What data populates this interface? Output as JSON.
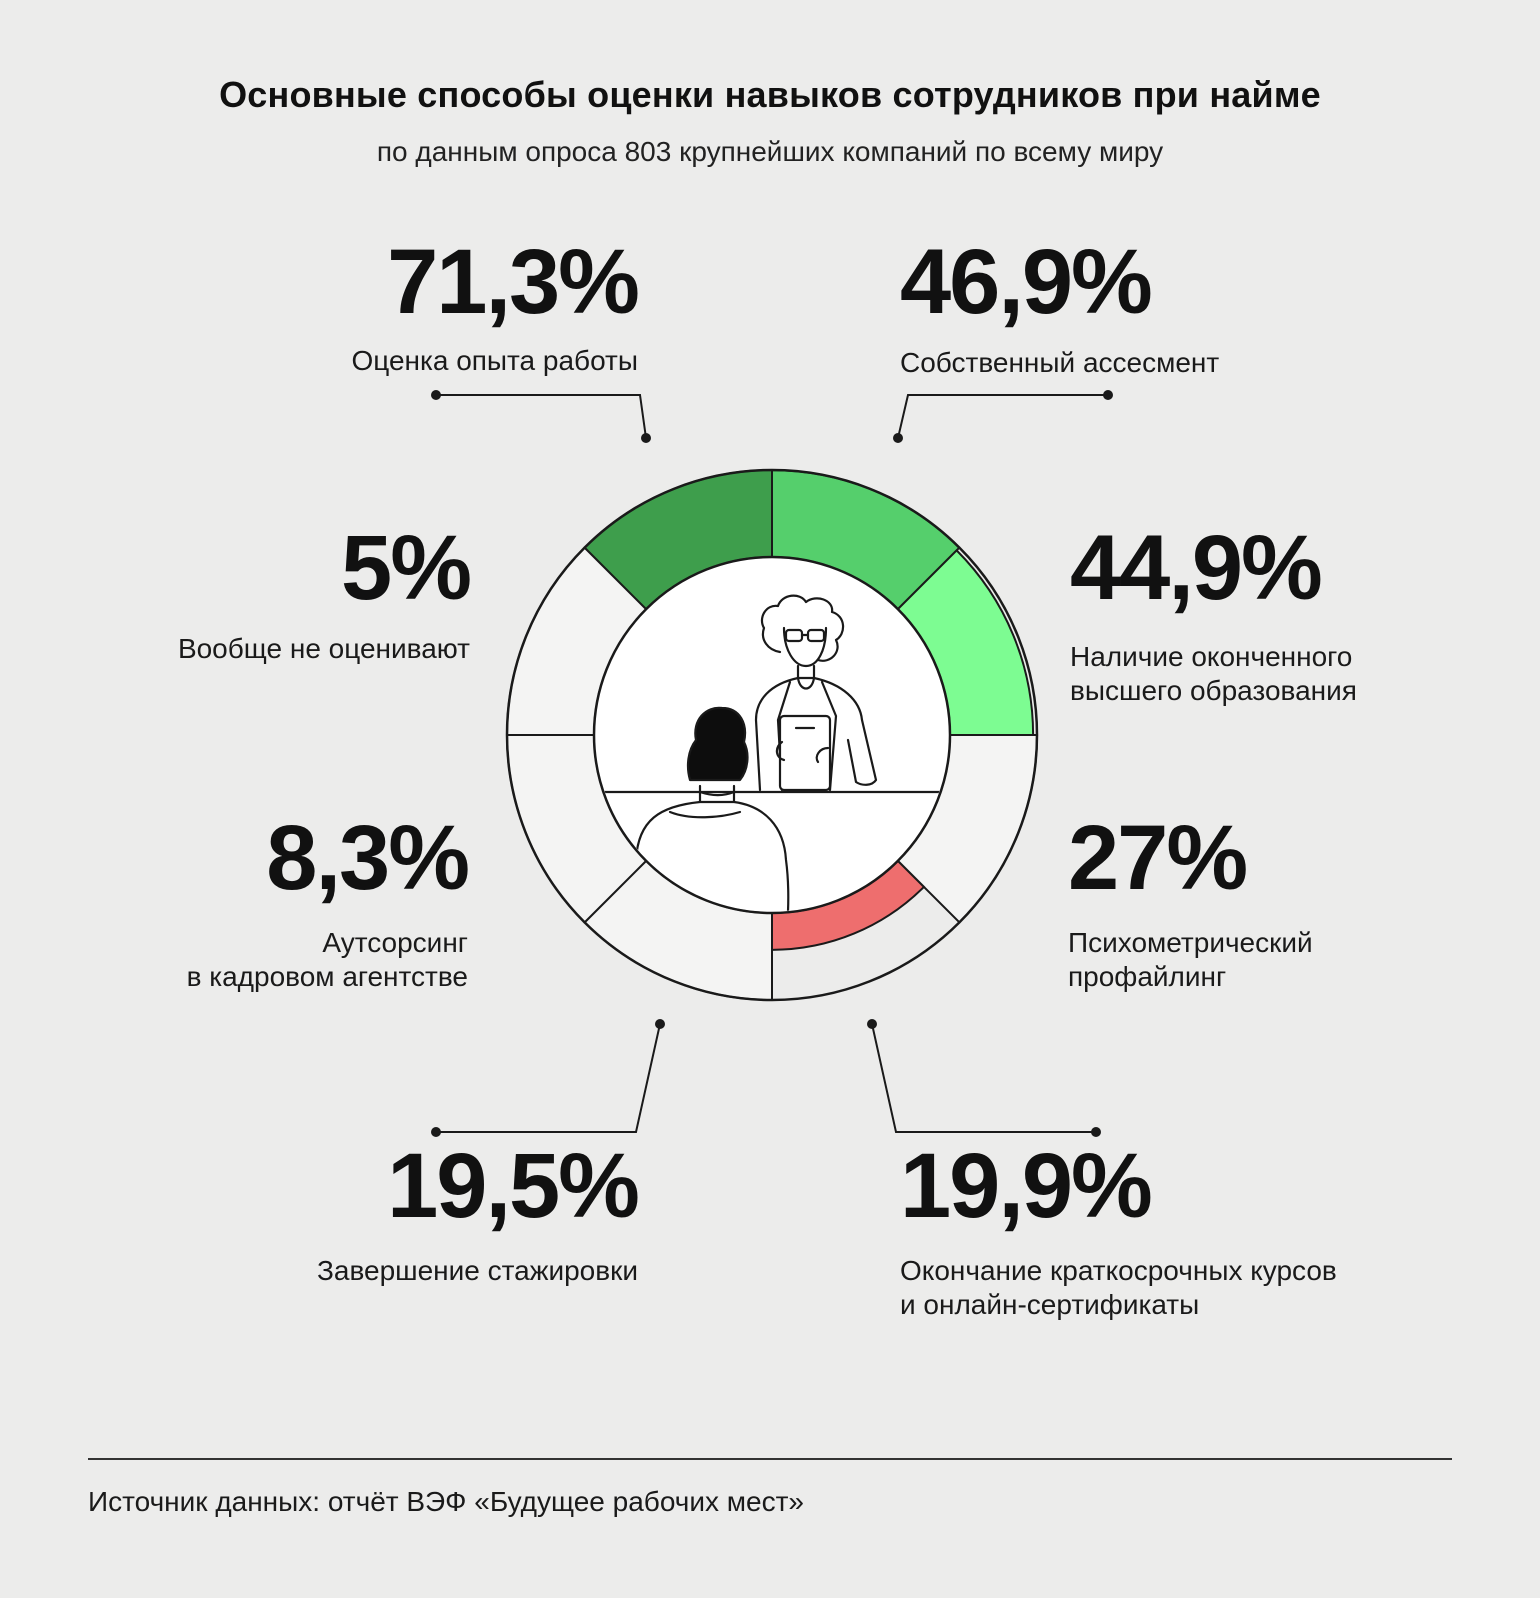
{
  "title": "Основные способы оценки навыков сотрудников при найме",
  "subtitle": "по данным опроса 803 крупнейших компаний по всему миру",
  "source": "Источник данных: отчёт ВЭФ «Будущее рабочих мест»",
  "colors": {
    "dark_green": "#3e9e4c",
    "green": "#55cf6c",
    "light_green": "#7dfc92",
    "red": "#ee6e6e",
    "empty": "#f4f4f3",
    "stroke": "#1a1a1a",
    "background": "#ececeb"
  },
  "chart_data": {
    "type": "pie",
    "style": "donut with central illustration",
    "items": [
      {
        "value": 71.3,
        "value_label": "71,3%",
        "label_lines": [
          "Оценка опыта работы"
        ],
        "color": "dark_green"
      },
      {
        "value": 46.9,
        "value_label": "46,9%",
        "label_lines": [
          "Собственный ассесмент"
        ],
        "color": "green"
      },
      {
        "value": 44.9,
        "value_label": "44,9%",
        "label_lines": [
          "Наличие оконченного",
          "высшего образования"
        ],
        "color": "light_green"
      },
      {
        "value": 27,
        "value_label": "27%",
        "label_lines": [
          "Психометрический",
          "профайлинг"
        ],
        "color": "empty"
      },
      {
        "value": 19.9,
        "value_label": "19,9%",
        "label_lines": [
          "Окончание краткосрочных курсов",
          "и онлайн-сертификаты"
        ],
        "color": "red"
      },
      {
        "value": 19.5,
        "value_label": "19,5%",
        "label_lines": [
          "Завершение стажировки"
        ],
        "color": "empty"
      },
      {
        "value": 8.3,
        "value_label": "8,3%",
        "label_lines": [
          "Аутсорсинг",
          "в кадровом агентстве"
        ],
        "color": "empty"
      },
      {
        "value": 5,
        "value_label": "5%",
        "label_lines": [
          "Вообще не оценивают"
        ],
        "color": "empty"
      }
    ]
  }
}
